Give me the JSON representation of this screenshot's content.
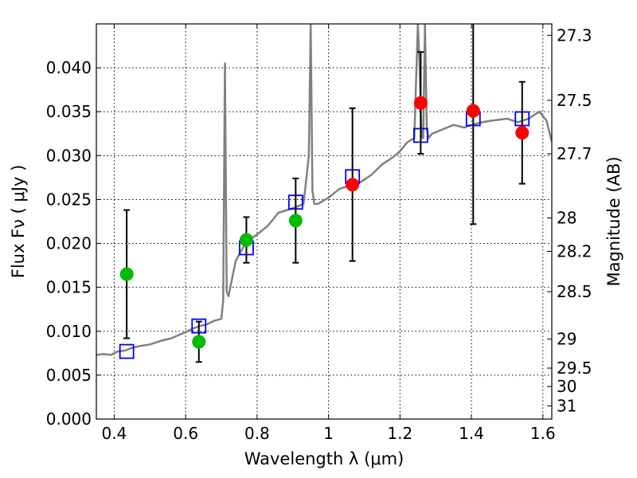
{
  "chart_data": {
    "type": "scatter",
    "title": "",
    "xlabel": "Wavelength  λ (μm)",
    "ylabel": "Flux  Fν  ( μJy )",
    "y2label": "Magnitude (AB)",
    "xlim": [
      0.35,
      1.625
    ],
    "ylim": [
      0.0,
      0.045
    ],
    "grid": true,
    "x_ticks": [
      0.4,
      0.6,
      0.8,
      1.0,
      1.2,
      1.4,
      1.6
    ],
    "x_tick_labels": [
      "0.4",
      "0.6",
      "0.8",
      "1",
      "1.2",
      "1.4",
      "1.6"
    ],
    "y_ticks": [
      0.0,
      0.005,
      0.01,
      0.015,
      0.02,
      0.025,
      0.03,
      0.035,
      0.04
    ],
    "y_tick_labels": [
      "0.000",
      "0.005",
      "0.010",
      "0.015",
      "0.020",
      "0.025",
      "0.030",
      "0.035",
      "0.040"
    ],
    "y2_ticks": [
      {
        "label": "27.3",
        "flux": 0.0437
      },
      {
        "label": "27.5",
        "flux": 0.0363
      },
      {
        "label": "27.7",
        "flux": 0.0302
      },
      {
        "label": "28",
        "flux": 0.0229
      },
      {
        "label": "28.2",
        "flux": 0.0191
      },
      {
        "label": "28.5",
        "flux": 0.0145
      },
      {
        "label": "29",
        "flux": 0.0091
      },
      {
        "label": "29.5",
        "flux": 0.0058
      },
      {
        "label": "30",
        "flux": 0.0037
      },
      {
        "label": "31",
        "flux": 0.0015
      }
    ],
    "series": [
      {
        "kind": "line",
        "color": "#808080",
        "x": [
          0.35,
          0.37,
          0.39,
          0.41,
          0.43,
          0.45,
          0.47,
          0.5,
          0.53,
          0.56,
          0.6,
          0.62,
          0.64,
          0.66,
          0.68,
          0.7,
          0.705,
          0.71,
          0.715,
          0.72,
          0.73,
          0.74,
          0.76,
          0.78,
          0.8,
          0.83,
          0.86,
          0.9,
          0.93,
          0.945,
          0.95,
          0.955,
          0.96,
          0.97,
          1.0,
          1.03,
          1.06,
          1.09,
          1.12,
          1.15,
          1.18,
          1.2,
          1.22,
          1.24,
          1.25,
          1.255,
          1.26,
          1.265,
          1.27,
          1.275,
          1.28,
          1.29,
          1.32,
          1.35,
          1.38,
          1.4,
          1.43,
          1.46,
          1.5,
          1.53,
          1.56,
          1.59,
          1.61,
          1.625
        ],
        "y": [
          0.0073,
          0.0074,
          0.0073,
          0.0077,
          0.0078,
          0.0081,
          0.0083,
          0.0085,
          0.0089,
          0.0092,
          0.0099,
          0.0103,
          0.0106,
          0.0108,
          0.0112,
          0.0114,
          0.0135,
          0.0405,
          0.0145,
          0.014,
          0.016,
          0.018,
          0.0195,
          0.0205,
          0.021,
          0.022,
          0.0235,
          0.024,
          0.0245,
          0.03,
          0.045,
          0.026,
          0.0245,
          0.0245,
          0.0252,
          0.0262,
          0.0266,
          0.027,
          0.0278,
          0.029,
          0.0298,
          0.0305,
          0.0315,
          0.032,
          0.045,
          0.04,
          0.032,
          0.032,
          0.045,
          0.033,
          0.032,
          0.0325,
          0.033,
          0.0335,
          0.0332,
          0.0335,
          0.0338,
          0.034,
          0.0342,
          0.0338,
          0.0342,
          0.035,
          0.034,
          0.0316
        ]
      },
      {
        "kind": "open-squares",
        "color": "#0000ff",
        "x": [
          0.435,
          0.637,
          0.77,
          0.908,
          1.067,
          1.258,
          1.405,
          1.542
        ],
        "y": [
          0.0077,
          0.0106,
          0.0195,
          0.0247,
          0.0276,
          0.0323,
          0.0342,
          0.0342
        ]
      },
      {
        "kind": "points-with-errorbars",
        "color": "#00bb00",
        "x": [
          0.435,
          0.637,
          0.77,
          0.908
        ],
        "y": [
          0.0165,
          0.0088,
          0.0204,
          0.0226
        ],
        "err": [
          0.0073,
          0.0023,
          0.0026,
          0.0048
        ]
      },
      {
        "kind": "points-with-errorbars",
        "color": "#ff0000",
        "x": [
          1.067,
          1.258,
          1.405,
          1.542
        ],
        "y": [
          0.0267,
          0.036,
          0.0351,
          0.0326
        ],
        "err": [
          0.0087,
          0.0058,
          0.0129,
          0.0058
        ]
      }
    ]
  }
}
